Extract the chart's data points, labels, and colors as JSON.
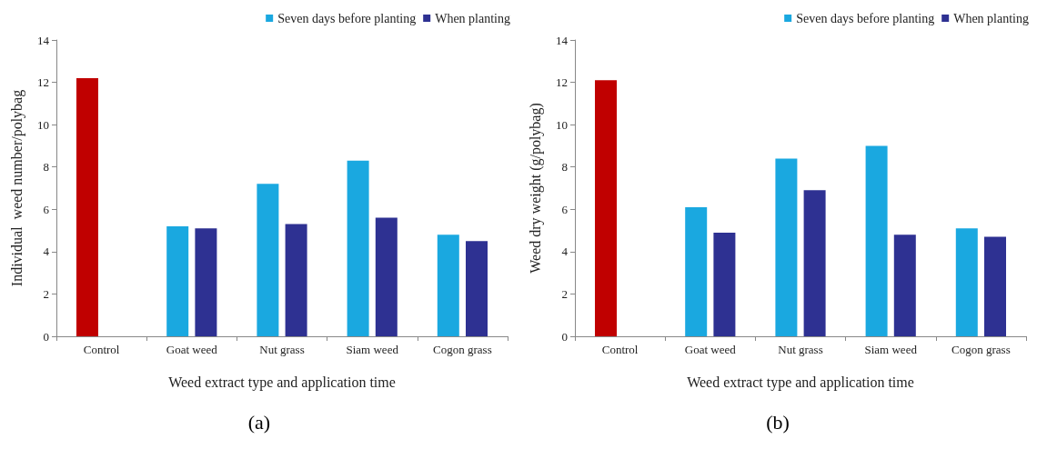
{
  "chart_data": [
    {
      "type": "bar",
      "ylabel": "Individual  weed number/polybag",
      "xlabel": "Weed extract type and application time",
      "categories": [
        "Control",
        "Goat weed",
        "Nut grass",
        "Siam weed",
        "Cogon grass"
      ],
      "series": [
        {
          "name": "Seven days before planting",
          "color": "#1aa8e0",
          "colors": [
            "#c00000",
            "#1aa8e0",
            "#1aa8e0",
            "#1aa8e0",
            "#1aa8e0"
          ],
          "values": [
            12.2,
            5.2,
            7.2,
            8.3,
            4.8
          ]
        },
        {
          "name": "When planting",
          "color": "#2e3192",
          "values": [
            null,
            5.1,
            5.3,
            5.6,
            4.5
          ]
        }
      ],
      "ylim": [
        0,
        14
      ],
      "yticks": [
        0,
        2,
        4,
        6,
        8,
        10,
        12,
        14
      ],
      "grid": false,
      "legend": "top right",
      "annotations": [
        "(a)"
      ]
    },
    {
      "type": "bar",
      "ylabel": "Weed dry weight (g/polybag)",
      "xlabel": "Weed extract type and application time",
      "categories": [
        "Control",
        "Goat weed",
        "Nut grass",
        "Siam weed",
        "Cogon grass"
      ],
      "series": [
        {
          "name": "Seven days before planting",
          "color": "#1aa8e0",
          "colors": [
            "#c00000",
            "#1aa8e0",
            "#1aa8e0",
            "#1aa8e0",
            "#1aa8e0"
          ],
          "values": [
            12.1,
            6.1,
            8.4,
            9.0,
            5.1
          ]
        },
        {
          "name": "When planting",
          "color": "#2e3192",
          "values": [
            null,
            4.9,
            6.9,
            4.8,
            4.7
          ]
        }
      ],
      "ylim": [
        0,
        14
      ],
      "yticks": [
        0,
        2,
        4,
        6,
        8,
        10,
        12,
        14
      ],
      "grid": false,
      "legend": "top right",
      "annotations": [
        "(b)"
      ]
    }
  ]
}
